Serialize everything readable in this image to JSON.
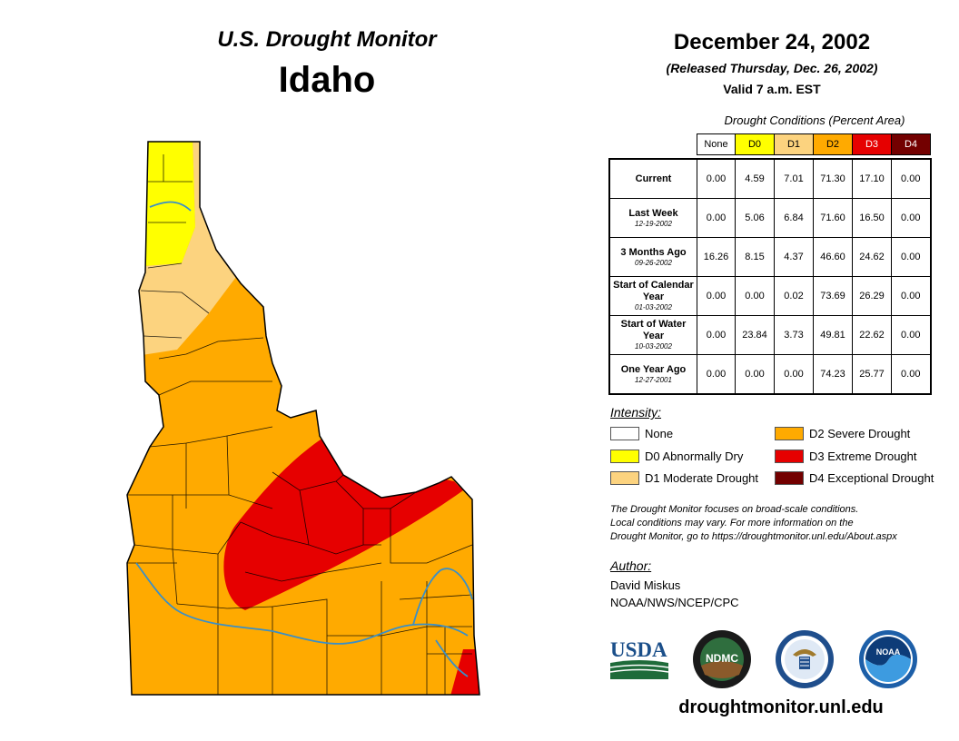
{
  "header": {
    "product_title": "U.S. Drought Monitor",
    "state_name": "Idaho",
    "map_date": "December 24, 2002",
    "released": "(Released Thursday, Dec. 26, 2002)",
    "valid": "Valid 7 a.m. EST"
  },
  "table": {
    "caption": "Drought Conditions (Percent Area)",
    "columns": [
      {
        "label": "None",
        "color": "#ffffff",
        "text_color": "#000000"
      },
      {
        "label": "D0",
        "color": "#ffff00",
        "text_color": "#000000"
      },
      {
        "label": "D1",
        "color": "#fcd37f",
        "text_color": "#000000"
      },
      {
        "label": "D2",
        "color": "#ffaa00",
        "text_color": "#000000"
      },
      {
        "label": "D3",
        "color": "#e60000",
        "text_color": "#ffffff"
      },
      {
        "label": "D4",
        "color": "#730000",
        "text_color": "#ffffff"
      }
    ],
    "rows": [
      {
        "label": "Current",
        "date": "",
        "values": [
          "0.00",
          "4.59",
          "7.01",
          "71.30",
          "17.10",
          "0.00"
        ]
      },
      {
        "label": "Last Week",
        "date": "12-19-2002",
        "values": [
          "0.00",
          "5.06",
          "6.84",
          "71.60",
          "16.50",
          "0.00"
        ]
      },
      {
        "label": "3 Months Ago",
        "date": "09-26-2002",
        "values": [
          "16.26",
          "8.15",
          "4.37",
          "46.60",
          "24.62",
          "0.00"
        ]
      },
      {
        "label": "Start of Calendar Year",
        "date": "01-03-2002",
        "values": [
          "0.00",
          "0.00",
          "0.02",
          "73.69",
          "26.29",
          "0.00"
        ]
      },
      {
        "label": "Start of Water Year",
        "date": "10-03-2002",
        "values": [
          "0.00",
          "23.84",
          "3.73",
          "49.81",
          "22.62",
          "0.00"
        ]
      },
      {
        "label": "One Year Ago",
        "date": "12-27-2001",
        "values": [
          "0.00",
          "0.00",
          "0.00",
          "74.23",
          "25.77",
          "0.00"
        ]
      }
    ]
  },
  "legend": {
    "title": "Intensity:",
    "items": [
      {
        "label": "None",
        "color": "#ffffff"
      },
      {
        "label": "D0 Abnormally Dry",
        "color": "#ffff00"
      },
      {
        "label": "D1 Moderate Drought",
        "color": "#fcd37f"
      },
      {
        "label": "D2 Severe Drought",
        "color": "#ffaa00"
      },
      {
        "label": "D3 Extreme Drought",
        "color": "#e60000"
      },
      {
        "label": "D4 Exceptional Drought",
        "color": "#730000"
      }
    ]
  },
  "note": {
    "line1": "The Drought Monitor focuses on broad-scale conditions.",
    "line2": "Local conditions may vary. For more information on the",
    "line3": "Drought Monitor, go to https://droughtmonitor.unl.edu/About.aspx"
  },
  "author": {
    "title": "Author:",
    "name": "David Miskus",
    "org": "NOAA/NWS/NCEP/CPC"
  },
  "logos": {
    "usda": "USDA",
    "ndmc": "NDMC",
    "noaa": "NOAA",
    "commerce_icon": "department-of-commerce-seal-icon"
  },
  "footer": {
    "website": "droughtmonitor.unl.edu"
  }
}
